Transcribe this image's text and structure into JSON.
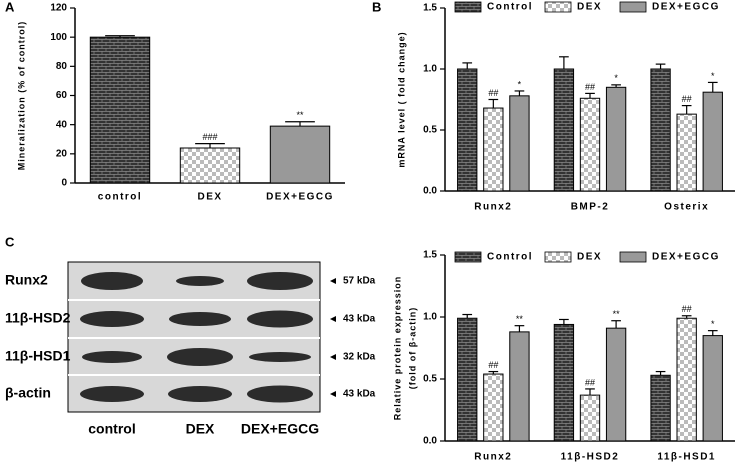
{
  "chart_data": [
    {
      "type": "bar",
      "panel": "A",
      "y_label": "Mineralization (% of control)",
      "categories": [
        "control",
        "DEX",
        "DEX+EGCG"
      ],
      "values": [
        100,
        24,
        39
      ],
      "errors": [
        1,
        3,
        3
      ],
      "annotations": [
        null,
        "###",
        "**"
      ],
      "colors": [
        "#333333",
        "#bbbbbb",
        "#999999"
      ],
      "patterns": [
        "brick",
        "checker",
        "solid"
      ],
      "ylim": [
        0,
        120
      ],
      "yticks": [
        0,
        20,
        40,
        60,
        80,
        100,
        120
      ]
    },
    {
      "type": "bar",
      "panel": "B",
      "y_label": "mRNA level ( fold change)",
      "categories": [
        "Runx2",
        "BMP-2",
        "Osterix"
      ],
      "series": [
        {
          "name": "Control",
          "color": "#333333",
          "pattern": "brick",
          "values": [
            1.0,
            1.0,
            1.0
          ],
          "errors": [
            0.05,
            0.1,
            0.04
          ],
          "annotations": [
            null,
            null,
            null
          ]
        },
        {
          "name": "DEX",
          "color": "#bbbbbb",
          "pattern": "checker",
          "values": [
            0.68,
            0.76,
            0.63
          ],
          "errors": [
            0.07,
            0.04,
            0.07
          ],
          "annotations": [
            "##",
            "##",
            "##"
          ]
        },
        {
          "name": "DEX+EGCG",
          "color": "#999999",
          "pattern": "solid",
          "values": [
            0.78,
            0.85,
            0.81
          ],
          "errors": [
            0.04,
            0.02,
            0.08
          ],
          "annotations": [
            "*",
            "*",
            "*"
          ]
        }
      ],
      "ylim": [
        0,
        1.5
      ],
      "yticks": [
        {
          "value": 0,
          "label": "0.0"
        },
        {
          "value": 0.5,
          "label": "0.5"
        },
        {
          "value": 1,
          "label": "1.0"
        },
        {
          "value": 1.5,
          "label": "1.5"
        }
      ]
    },
    {
      "type": "bar",
      "y_label": [
        "Relative protein expression",
        "(fold of β-actin)"
      ],
      "categories": [
        "Runx2",
        "11β-HSD2",
        "11β-HSD1"
      ],
      "series": [
        {
          "name": "Control",
          "color": "#333333",
          "pattern": "brick",
          "values": [
            0.99,
            0.94,
            0.53
          ],
          "errors": [
            0.03,
            0.04,
            0.03
          ],
          "annotations": [
            null,
            null,
            null
          ]
        },
        {
          "name": "DEX",
          "color": "#bbbbbb",
          "pattern": "checker",
          "values": [
            0.54,
            0.37,
            0.99
          ],
          "errors": [
            0.02,
            0.05,
            0.02
          ],
          "annotations": [
            "##",
            "##",
            "##"
          ]
        },
        {
          "name": "DEX+EGCG",
          "color": "#999999",
          "pattern": "solid",
          "values": [
            0.88,
            0.91,
            0.85
          ],
          "errors": [
            0.05,
            0.06,
            0.04
          ],
          "annotations": [
            "**",
            "**",
            "*"
          ]
        }
      ],
      "ylim": [
        0,
        1.5
      ],
      "yticks": [
        {
          "value": 0,
          "label": "0.0"
        },
        {
          "value": 0.5,
          "label": "0.5"
        },
        {
          "value": 1,
          "label": "1.0"
        },
        {
          "value": 1.5,
          "label": "1.5"
        }
      ]
    }
  ],
  "blot": {
    "panel": "C",
    "proteins": [
      "Runx2",
      "11β-HSD2",
      "11β-HSD1",
      "β-actin"
    ],
    "sizes": [
      "57 kDa",
      "43 kDa",
      "32 kDa",
      "43 kDa"
    ],
    "lanes": [
      "control",
      "DEX",
      "DEX+EGCG"
    ]
  }
}
